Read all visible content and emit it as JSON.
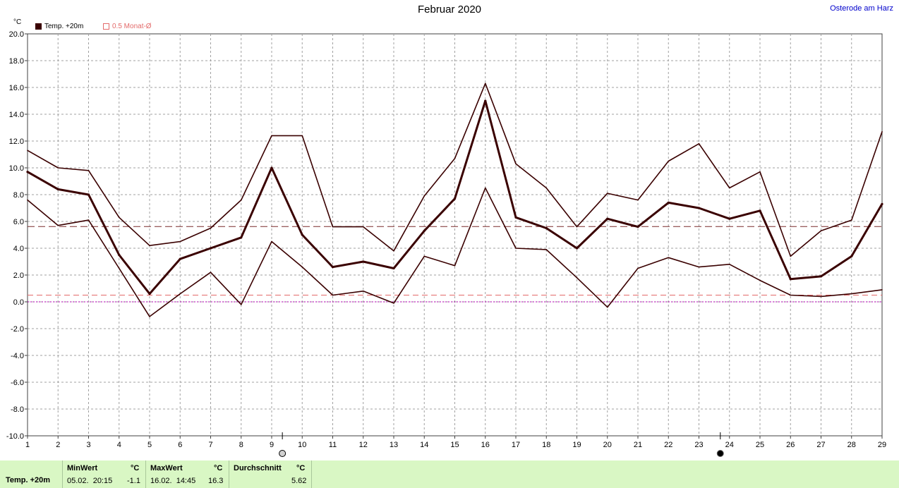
{
  "header": {
    "title": "Februar 2020",
    "location": "Osterode am Harz",
    "unit": "°C"
  },
  "legend": {
    "temp_label": "Temp. +20m",
    "avg_label": "0.5 Monat-Ø"
  },
  "colors": {
    "series": "#3a0000",
    "monthly_avg_line": "#e36a6a",
    "mean_line": "#7a2a2a",
    "zero_line": "#b400b4",
    "grid": "#a0a0a0",
    "stats_bg": "#d9f7c4"
  },
  "icons": {
    "full_moon_day": 9.35,
    "new_moon_day": 23.7
  },
  "chart_data": {
    "type": "line",
    "title": "Februar 2020",
    "ylabel": "°C",
    "x": [
      1,
      2,
      3,
      4,
      5,
      6,
      7,
      8,
      9,
      10,
      11,
      12,
      13,
      14,
      15,
      16,
      17,
      18,
      19,
      20,
      21,
      22,
      23,
      24,
      25,
      26,
      27,
      28,
      29
    ],
    "xlim": [
      1,
      29
    ],
    "ylim": [
      -10,
      20
    ],
    "yticks": [
      20.0,
      18.0,
      16.0,
      14.0,
      12.0,
      10.0,
      8.0,
      6.0,
      4.0,
      2.0,
      0.0,
      -2.0,
      -4.0,
      -6.0,
      -8.0,
      -10.0
    ],
    "ytick_labels": [
      "20.0",
      "18.0",
      "16.0",
      "14.0",
      "12.0",
      "10.0",
      "8.0",
      "6.0",
      "4.0",
      "2.0",
      "0.0",
      "-2.0",
      "-4.0",
      "-6.0",
      "-8.0",
      "-10.0"
    ],
    "grid": true,
    "legend_position": "top-left",
    "series": [
      {
        "role": "max",
        "values": [
          11.3,
          10.0,
          9.8,
          6.3,
          4.2,
          4.5,
          5.5,
          7.6,
          12.4,
          12.4,
          5.6,
          5.6,
          3.8,
          7.9,
          10.7,
          16.3,
          10.3,
          8.5,
          5.6,
          8.1,
          7.6,
          10.5,
          11.8,
          8.5,
          9.7,
          3.4,
          5.3,
          6.1,
          12.7
        ]
      },
      {
        "role": "mean",
        "values": [
          9.7,
          8.4,
          8.0,
          3.5,
          0.6,
          3.2,
          4.0,
          4.8,
          10.0,
          5.0,
          2.6,
          3.0,
          2.5,
          5.3,
          7.7,
          15.0,
          6.3,
          5.5,
          4.0,
          6.2,
          5.6,
          7.4,
          7.0,
          6.2,
          6.8,
          1.7,
          1.9,
          3.4,
          7.3
        ]
      },
      {
        "role": "min",
        "values": [
          7.6,
          5.7,
          6.1,
          2.5,
          -1.1,
          0.6,
          2.2,
          -0.2,
          4.5,
          2.6,
          0.5,
          0.8,
          -0.1,
          3.4,
          2.7,
          8.5,
          4.0,
          3.9,
          1.8,
          -0.4,
          2.5,
          3.3,
          2.6,
          2.8,
          1.6,
          0.5,
          0.4,
          0.6,
          0.9
        ]
      }
    ],
    "mean_line_value": 5.62,
    "monthly_avg_value": 0.5
  },
  "stats": {
    "series_name": "Temp. +20m",
    "min": {
      "header": "MinWert",
      "unit": "°C",
      "datetime": "05.02.  20:15",
      "value": "-1.1"
    },
    "max": {
      "header": "MaxWert",
      "unit": "°C",
      "datetime": "16.02.  14:45",
      "value": "16.3"
    },
    "avg": {
      "header": "Durchschnitt",
      "unit": "°C",
      "value": "5.62"
    }
  }
}
